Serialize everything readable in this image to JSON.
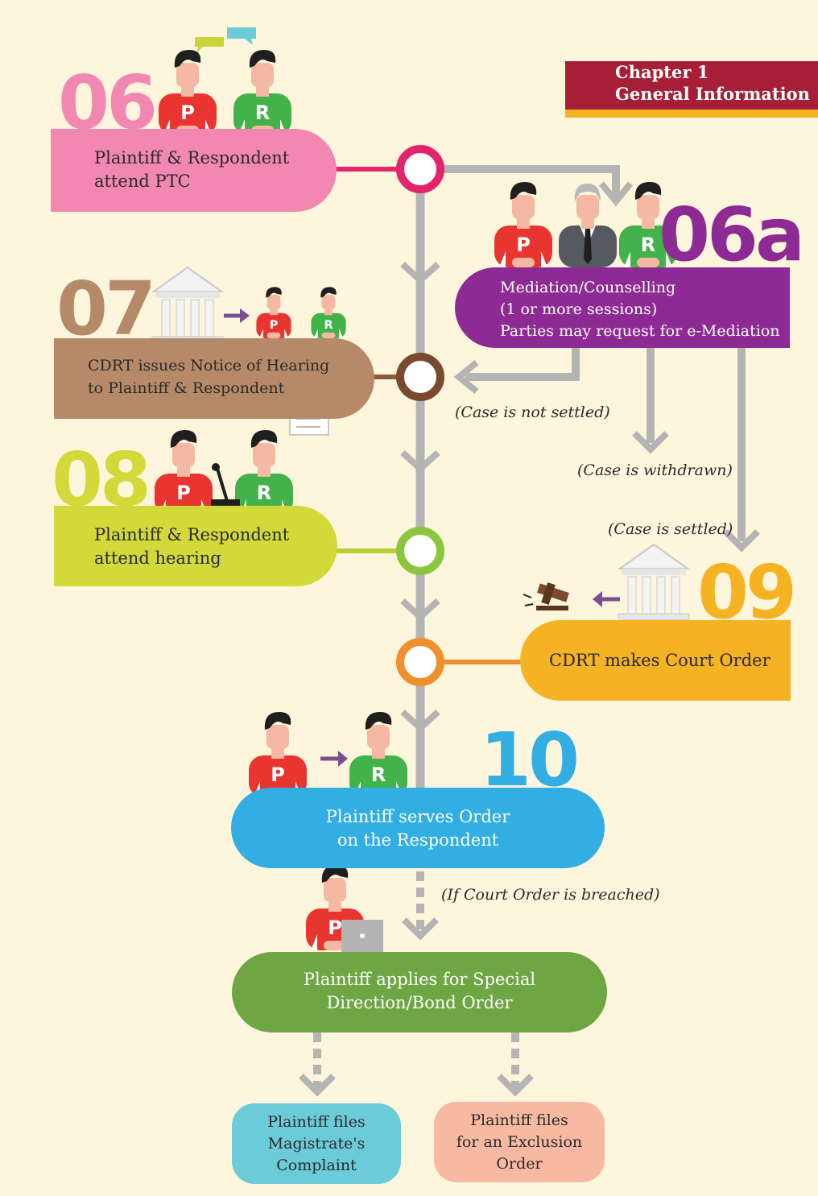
{
  "chapter": {
    "line1": "Chapter 1",
    "line2": "General Information"
  },
  "steps": {
    "s06": {
      "number": "06",
      "line1": "Plaintiff & Respondent",
      "line2": "attend PTC",
      "color": "#f287b1"
    },
    "s06a": {
      "number": "06a",
      "line1": "Mediation/Counselling",
      "line2": "(1 or more sessions)",
      "line3": "Parties may request for e-Mediation",
      "color": "#8e2a93"
    },
    "s07": {
      "number": "07",
      "line1": "CDRT issues Notice of Hearing",
      "line2": "to Plaintiff & Respondent",
      "color": "#b68a68"
    },
    "s08": {
      "number": "08",
      "line1": "Plaintiff & Respondent",
      "line2": "attend hearing",
      "color": "#d4d93a"
    },
    "s09": {
      "number": "09",
      "line1": "CDRT makes Court Order",
      "color": "#f5b323"
    },
    "s10": {
      "number": "10",
      "line1": "Plaintiff serves Order",
      "line2": "on the Respondent",
      "color": "#32aee2"
    },
    "s11": {
      "line1": "Plaintiff applies for Special",
      "line2": "Direction/Bond Order",
      "color": "#6fa644"
    },
    "s12a": {
      "line1": "Plaintiff files",
      "line2": "Magistrate's",
      "line3": "Complaint",
      "color": "#6ccbd9"
    },
    "s12b": {
      "line1": "Plaintiff files",
      "line2": "for an Exclusion",
      "line3": "Order",
      "color": "#f7b9a2"
    }
  },
  "notes": {
    "not_settled": "(Case is not settled)",
    "withdrawn": "(Case is withdrawn)",
    "settled": "(Case is settled)",
    "breached": "(If Court Order is breached)"
  },
  "badges": {
    "plaintiff": "P",
    "respondent": "R"
  },
  "colors": {
    "line": "#b4b4b4",
    "arrow": "#b4b4b4",
    "purple_arrow": "#7a4f93"
  }
}
